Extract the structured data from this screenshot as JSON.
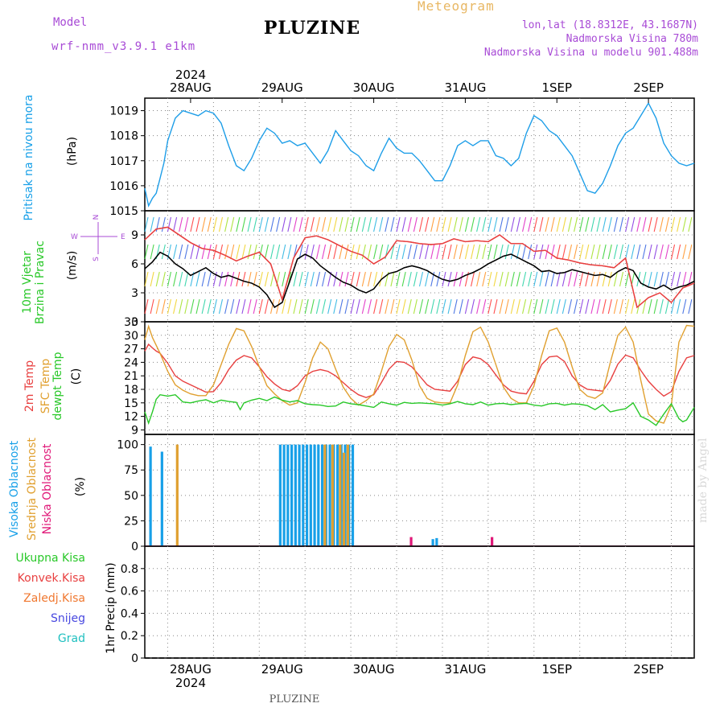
{
  "header": {
    "title": "PLUZINE",
    "meteogram": "Meteogram",
    "model_label": "Model",
    "model_value": "wrf-nmm_v3.9.1  e1km",
    "lonlat": "lon,lat (18.8312E, 43.1687N)",
    "elevation": "Nadmorska Visina 780m",
    "model_elevation": "Nadmorska Visina u modelu 901.488m"
  },
  "footer": {
    "name": "PLUZINE",
    "credit": "made by Angel"
  },
  "colors": {
    "pressure": "#1e9ee8",
    "t2m": "#e84040",
    "sfc": "#e0a030",
    "dew": "#28c828",
    "high": "#18a0e8",
    "mid": "#e0a030",
    "low": "#e01878",
    "total": "#28c828",
    "conv": "#e84040",
    "frz": "#f07830",
    "snow": "#4848e0",
    "grad": "#20c0c0",
    "wind_mean": "#000000",
    "wind_gust": "#e84040"
  },
  "time_axis": {
    "year": "2024",
    "days": [
      "28AUG",
      "29AUG",
      "30AUG",
      "31AUG",
      "1SEP",
      "2SEP"
    ],
    "start_hour": 0,
    "end_hour": 144
  },
  "chart_data": [
    {
      "type": "line",
      "ylabel": "Pritisak na nivou mora",
      "unit": "(hPa)",
      "ylim": [
        1015,
        1019.5
      ],
      "yticks": [
        1015,
        1016,
        1017,
        1018,
        1019
      ],
      "series": [
        {
          "color": "#1e9ee8",
          "x": [
            0,
            1,
            2,
            3,
            4,
            5,
            6,
            8,
            10,
            12,
            14,
            16,
            18,
            20,
            22,
            24,
            26,
            28,
            30,
            32,
            34,
            36,
            38,
            40,
            42,
            44,
            46,
            48,
            50,
            52,
            54,
            56,
            58,
            60,
            62,
            64,
            66,
            68,
            70,
            72,
            74,
            76,
            78,
            80,
            82,
            84,
            86,
            88,
            90,
            92,
            94,
            96,
            98,
            100,
            102,
            104,
            106,
            108,
            110,
            112,
            114,
            116,
            118,
            120,
            122,
            124,
            126,
            128,
            130,
            132,
            134,
            136,
            138,
            140,
            142,
            144
          ],
          "y": [
            1015.9,
            1015.2,
            1015.5,
            1015.7,
            1016.3,
            1016.9,
            1017.8,
            1018.7,
            1019.0,
            1018.9,
            1018.8,
            1019.0,
            1018.9,
            1018.5,
            1017.6,
            1016.8,
            1016.6,
            1017.1,
            1017.8,
            1018.3,
            1018.1,
            1017.7,
            1017.8,
            1017.6,
            1017.7,
            1017.3,
            1016.9,
            1017.4,
            1018.2,
            1017.8,
            1017.4,
            1017.2,
            1016.8,
            1016.6,
            1017.3,
            1017.9,
            1017.5,
            1017.3,
            1017.3,
            1017.0,
            1016.6,
            1016.2,
            1016.2,
            1016.8,
            1017.6,
            1017.8,
            1017.6,
            1017.8,
            1017.8,
            1017.2,
            1017.1,
            1016.8,
            1017.1,
            1018.1,
            1018.8,
            1018.6,
            1018.2,
            1018.0,
            1017.6,
            1017.2,
            1016.5,
            1015.8,
            1015.7,
            1016.1,
            1016.8,
            1017.6,
            1018.1,
            1018.3,
            1018.8,
            1019.3,
            1018.7,
            1017.7,
            1017.2,
            1016.9,
            1016.8,
            1016.9
          ]
        }
      ]
    },
    {
      "type": "line",
      "ylabel": "10m Vjetar Brzina i Pravac",
      "unit": "(m/s)",
      "ylim": [
        0,
        11.5
      ],
      "yticks": [
        0,
        3,
        6,
        9
      ],
      "compass": [
        "N",
        "W",
        "E",
        "S"
      ],
      "series": [
        {
          "color": "#000000",
          "x": [
            0,
            2,
            4,
            6,
            8,
            10,
            12,
            14,
            16,
            18,
            20,
            22,
            24,
            26,
            28,
            30,
            32,
            34,
            36,
            38,
            40,
            42,
            44,
            46,
            48,
            50,
            52,
            54,
            56,
            58,
            60,
            62,
            64,
            66,
            68,
            70,
            72,
            74,
            76,
            78,
            80,
            82,
            84,
            86,
            88,
            90,
            92,
            94,
            96,
            98,
            100,
            102,
            104,
            106,
            108,
            110,
            112,
            114,
            116,
            118,
            120,
            122,
            124,
            126,
            128,
            130,
            132,
            134,
            136,
            138,
            140,
            142,
            144
          ],
          "y": [
            5.5,
            6.2,
            7.2,
            6.8,
            6.0,
            5.5,
            4.8,
            5.2,
            5.6,
            5.0,
            4.6,
            4.8,
            4.5,
            4.2,
            4.0,
            3.6,
            2.8,
            1.5,
            2.0,
            4.2,
            6.5,
            7.0,
            6.6,
            5.8,
            5.2,
            4.6,
            4.1,
            3.8,
            3.3,
            3.0,
            3.4,
            4.4,
            5.0,
            5.2,
            5.6,
            5.8,
            5.6,
            5.3,
            4.8,
            4.4,
            4.2,
            4.4,
            4.8,
            5.1,
            5.5,
            6.0,
            6.4,
            6.8,
            7.0,
            6.6,
            6.2,
            5.8,
            5.2,
            5.3,
            5.0,
            5.1,
            5.4,
            5.2,
            5.0,
            4.8,
            4.9,
            4.6,
            5.2,
            5.6,
            5.3,
            4.0,
            3.6,
            3.4,
            3.8,
            3.3,
            3.6,
            3.8,
            4.2
          ]
        },
        {
          "color": "#e84040",
          "x": [
            0,
            3,
            6,
            9,
            12,
            15,
            18,
            21,
            24,
            27,
            30,
            33,
            36,
            39,
            42,
            45,
            48,
            51,
            54,
            57,
            60,
            63,
            66,
            69,
            72,
            75,
            78,
            81,
            84,
            87,
            90,
            93,
            96,
            99,
            102,
            105,
            108,
            111,
            114,
            117,
            120,
            123,
            126,
            129,
            132,
            135,
            138,
            141,
            144
          ],
          "y": [
            8.5,
            9.6,
            9.8,
            9.0,
            8.2,
            7.6,
            7.4,
            6.9,
            6.3,
            6.8,
            7.2,
            6.0,
            2.3,
            6.6,
            8.7,
            8.9,
            8.5,
            7.9,
            7.3,
            6.9,
            6.0,
            6.7,
            8.4,
            8.3,
            8.1,
            8.0,
            8.1,
            8.6,
            8.3,
            8.4,
            8.3,
            9.0,
            8.1,
            8.1,
            7.3,
            7.4,
            6.6,
            6.4,
            6.1,
            5.9,
            5.8,
            5.6,
            6.6,
            1.5,
            2.5,
            3.0,
            2.0,
            3.5,
            4.0
          ]
        }
      ]
    },
    {
      "type": "line",
      "ylabel": [
        "2m Temp",
        "SFC Temp",
        "dewpt Temp"
      ],
      "unit": "(C)",
      "ylim": [
        8,
        33
      ],
      "yticks": [
        9,
        12,
        15,
        18,
        21,
        24,
        27,
        30,
        33
      ],
      "series": [
        {
          "name": "2m Temp",
          "color": "#e84040",
          "x": [
            0,
            1,
            2,
            3,
            4,
            6,
            8,
            10,
            12,
            14,
            16,
            18,
            20,
            22,
            24,
            26,
            28,
            30,
            32,
            34,
            36,
            38,
            40,
            42,
            44,
            46,
            48,
            50,
            52,
            54,
            56,
            58,
            60,
            62,
            64,
            66,
            68,
            70,
            72,
            74,
            76,
            78,
            80,
            82,
            84,
            86,
            88,
            90,
            92,
            94,
            96,
            98,
            100,
            102,
            104,
            106,
            108,
            110,
            112,
            114,
            116,
            118,
            120,
            122,
            124,
            126,
            128,
            130,
            132,
            134,
            136,
            138,
            140,
            142,
            144
          ],
          "y": [
            26.5,
            28.0,
            27.2,
            26.5,
            26.0,
            23.8,
            21.0,
            19.8,
            19.0,
            18.2,
            17.4,
            17.5,
            19.5,
            22.4,
            24.5,
            25.5,
            25.0,
            23.0,
            20.8,
            19.2,
            18.0,
            17.6,
            18.8,
            21.0,
            22.0,
            22.4,
            22.0,
            21.0,
            19.5,
            18.0,
            16.8,
            16.2,
            16.8,
            19.5,
            22.5,
            24.2,
            24.0,
            23.0,
            21.0,
            19.0,
            18.0,
            17.8,
            17.6,
            19.8,
            23.5,
            25.2,
            24.8,
            23.5,
            21.2,
            19.0,
            17.6,
            17.2,
            17.0,
            19.8,
            23.5,
            25.2,
            25.4,
            24.2,
            21.0,
            19.0,
            18.0,
            17.8,
            17.6,
            20.0,
            23.6,
            25.6,
            25.0,
            22.2,
            19.8,
            18.0,
            16.5,
            17.5,
            22.0,
            25.0,
            25.5
          ]
        },
        {
          "name": "SFC Temp",
          "color": "#e0a030",
          "x": [
            0,
            1,
            2,
            4,
            6,
            8,
            10,
            12,
            14,
            16,
            18,
            20,
            22,
            24,
            26,
            28,
            30,
            32,
            34,
            36,
            38,
            40,
            42,
            44,
            46,
            48,
            50,
            52,
            54,
            56,
            58,
            60,
            62,
            64,
            66,
            68,
            70,
            72,
            74,
            76,
            78,
            80,
            82,
            84,
            86,
            88,
            90,
            92,
            94,
            96,
            98,
            100,
            102,
            104,
            106,
            108,
            110,
            112,
            114,
            116,
            118,
            120,
            122,
            124,
            126,
            128,
            130,
            132,
            134,
            136,
            138,
            140,
            142,
            144
          ],
          "y": [
            29.0,
            32.0,
            29.5,
            26.0,
            22.0,
            19.0,
            17.8,
            17.0,
            16.6,
            16.6,
            19.0,
            23.5,
            28.0,
            31.5,
            31.0,
            27.5,
            23.0,
            18.8,
            17.0,
            15.5,
            14.5,
            15.0,
            19.5,
            25.0,
            28.5,
            27.0,
            22.5,
            18.5,
            16.0,
            14.5,
            15.5,
            17.0,
            22.0,
            27.5,
            30.2,
            29.0,
            24.5,
            18.8,
            16.0,
            15.2,
            15.0,
            15.0,
            19.0,
            25.5,
            30.8,
            31.8,
            28.5,
            23.5,
            18.5,
            16.0,
            15.0,
            15.0,
            18.8,
            25.5,
            31.0,
            31.6,
            28.5,
            23.0,
            18.0,
            16.5,
            16.0,
            17.2,
            24.0,
            30.0,
            31.8,
            28.5,
            20.0,
            12.5,
            11.0,
            10.5,
            14.5,
            28.5,
            32.2,
            32.0
          ]
        },
        {
          "name": "dewpt Temp",
          "color": "#28c828",
          "x": [
            0,
            1,
            2,
            3,
            4,
            6,
            8,
            10,
            12,
            14,
            16,
            18,
            20,
            22,
            24,
            25,
            26,
            28,
            30,
            32,
            34,
            36,
            38,
            40,
            42,
            44,
            46,
            48,
            50,
            52,
            54,
            56,
            58,
            60,
            62,
            64,
            66,
            68,
            70,
            72,
            74,
            76,
            78,
            80,
            82,
            84,
            86,
            88,
            90,
            92,
            94,
            96,
            98,
            100,
            102,
            104,
            106,
            108,
            110,
            112,
            114,
            116,
            118,
            120,
            122,
            124,
            126,
            128,
            130,
            132,
            134,
            136,
            138,
            140,
            141,
            142,
            144
          ],
          "y": [
            13.0,
            10.5,
            13.0,
            15.8,
            16.8,
            16.5,
            16.8,
            15.2,
            15.0,
            15.4,
            15.7,
            15.0,
            15.6,
            15.3,
            15.1,
            13.5,
            15.0,
            15.6,
            16.0,
            15.5,
            16.3,
            15.6,
            15.2,
            15.5,
            14.8,
            14.6,
            14.5,
            14.2,
            14.3,
            15.2,
            14.8,
            14.6,
            14.3,
            14.0,
            15.2,
            14.8,
            14.5,
            15.1,
            14.9,
            15.0,
            14.9,
            14.8,
            14.5,
            14.8,
            15.3,
            14.8,
            14.6,
            15.2,
            14.5,
            14.8,
            14.9,
            14.6,
            14.8,
            14.9,
            14.5,
            14.3,
            14.8,
            14.9,
            14.5,
            14.8,
            14.7,
            14.4,
            13.5,
            14.6,
            13.0,
            13.4,
            13.7,
            15.0,
            12.0,
            11.2,
            10.0,
            12.5,
            14.8,
            11.5,
            10.8,
            11.2,
            14.0
          ]
        }
      ]
    },
    {
      "type": "bar",
      "ylabel": [
        "Visoka Oblacnost",
        "Srednja Oblacnost",
        "Niska Oblacnost"
      ],
      "unit": "(%)",
      "ylim": [
        0,
        110
      ],
      "yticks": [
        0,
        25,
        50,
        75,
        100
      ],
      "series": [
        {
          "name": "Visoka Oblacnost",
          "color": "#18a0e8",
          "x": [
            1.5,
            4.5,
            35.5,
            36.5,
            37.5,
            38.5,
            39.5,
            40.5,
            41.5,
            42.5,
            43.5,
            44.5,
            45.5,
            46.5,
            47.5,
            48.5,
            49.5,
            50.5,
            51.5,
            52.5,
            53.5,
            54.5,
            75.5,
            76.5
          ],
          "y": [
            98,
            93,
            100,
            100,
            100,
            100,
            100,
            100,
            100,
            100,
            100,
            100,
            100,
            100,
            100,
            100,
            100,
            100,
            100,
            100,
            100,
            100,
            7,
            8
          ]
        },
        {
          "name": "Srednja Oblacnost",
          "color": "#e0a030",
          "x": [
            8.5,
            47.2,
            49.2,
            51.2,
            52.2,
            53.2
          ],
          "y": [
            100,
            100,
            100,
            100,
            92,
            100
          ]
        },
        {
          "name": "Niska Oblacnost",
          "color": "#e01878",
          "x": [
            69.8,
            91.0
          ],
          "y": [
            9,
            9
          ]
        }
      ]
    },
    {
      "type": "bar",
      "ylabel": "1hr Precip",
      "unit": "(mm)",
      "ylim": [
        0,
        1.0
      ],
      "yticks": [
        0,
        0.2,
        0.4,
        0.6,
        0.8
      ],
      "legend": [
        "Ukupna Kisa",
        "Konvek.Kisa",
        "Zaledj.Kisa",
        "Snijeg",
        "Grad"
      ],
      "series": []
    }
  ]
}
